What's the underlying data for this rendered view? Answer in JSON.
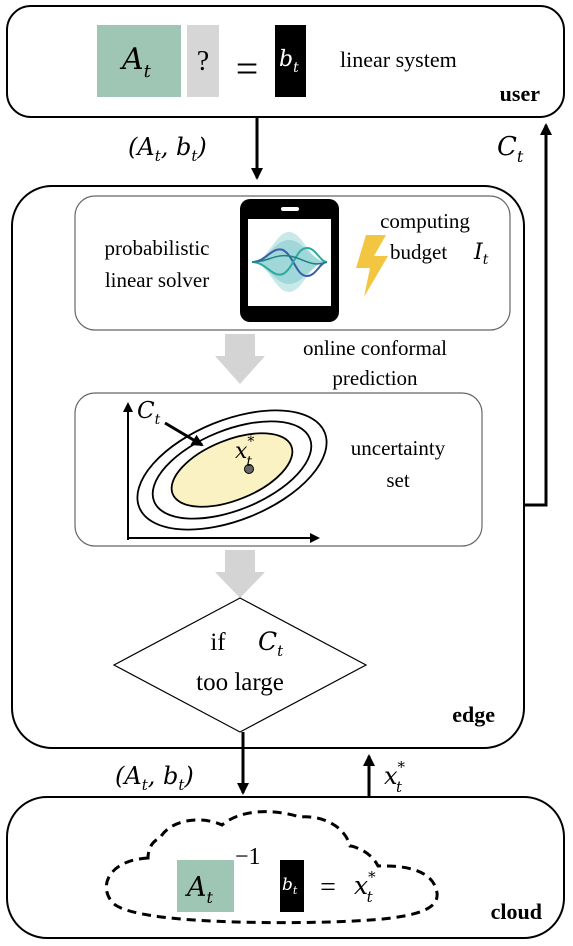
{
  "user": {
    "label": "user",
    "system_label": "linear system",
    "matrix": "A",
    "matrix_sub": "t",
    "unknown": "?",
    "equals": "=",
    "rhs": "b",
    "rhs_sub": "t",
    "matrix_color": "#9fc5b5",
    "unknown_color": "#d6d6d6",
    "rhs_color": "#000000"
  },
  "arrows": {
    "user_to_edge": "(A",
    "user_to_edge_sub1": "t",
    "user_to_edge_mid": ", b",
    "user_to_edge_sub2": "t",
    "user_to_edge_end": ")",
    "edge_to_user": "C",
    "edge_to_user_sub": "t",
    "edge_to_cloud": "(A",
    "edge_to_cloud_sub1": "t",
    "edge_to_cloud_mid": ", b",
    "edge_to_cloud_sub2": "t",
    "edge_to_cloud_end": ")",
    "cloud_to_edge": "x",
    "cloud_to_edge_sup": "*",
    "cloud_to_edge_sub": "t"
  },
  "edge": {
    "label": "edge",
    "solver_line1": "probabilistic",
    "solver_line2": "linear solver",
    "budget_line1": "computing",
    "budget_line2": "budget",
    "budget_symbol": "I",
    "budget_sub": "t",
    "conformal_line1": "online conformal",
    "conformal_line2": "prediction",
    "set_line1": "uncertainty",
    "set_line2": "set",
    "set_symbol": "C",
    "set_sub": "t",
    "solution": "x",
    "solution_sup": "*",
    "solution_sub": "t",
    "decision_if": "if",
    "decision_symbol": "C",
    "decision_sub": "t",
    "decision_line2": "too large",
    "ellipse_fill": "#fbf2c4",
    "lightning_color": "#f3c642",
    "phone_wave_colors": [
      "#7cc5c9",
      "#3a5ea8",
      "#2fa9a0"
    ]
  },
  "cloud": {
    "label": "cloud",
    "matrix": "A",
    "matrix_sub": "t",
    "inverse": "−1",
    "rhs": "b",
    "rhs_sub": "t",
    "equals": "=",
    "solution": "x",
    "solution_sup": "*",
    "solution_sub": "t"
  }
}
